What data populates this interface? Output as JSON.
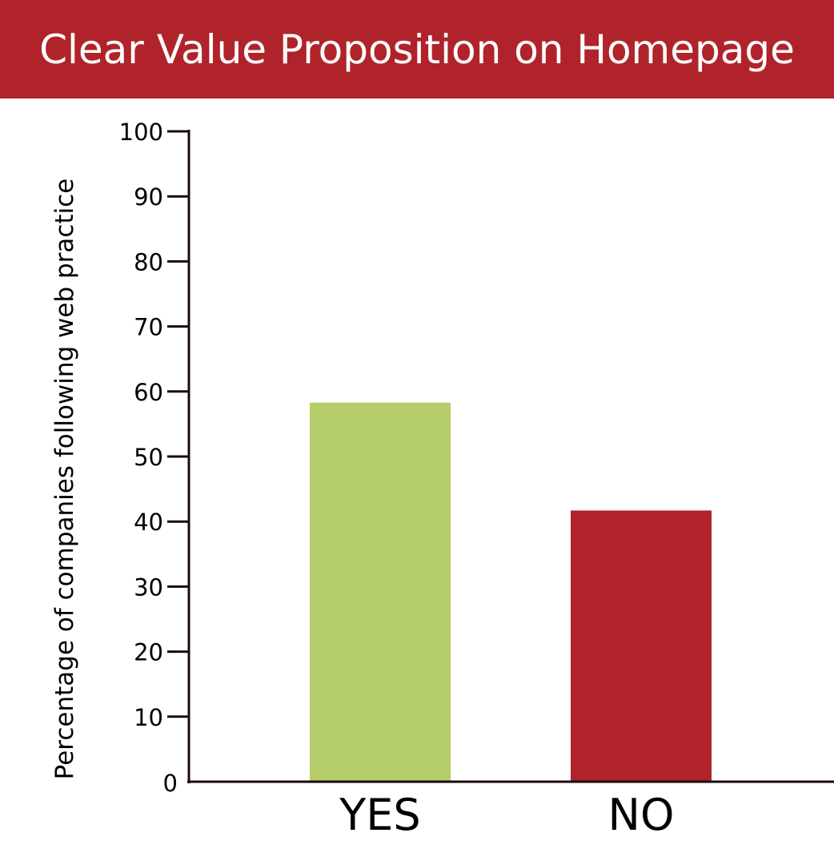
{
  "colors": {
    "title_bg": "#b0232a",
    "title_text": "#ffffff",
    "axis": "#1a0a0c",
    "bars": [
      "#b6ce6a",
      "#b0232a"
    ]
  },
  "chart_data": {
    "type": "bar",
    "title": "Clear Value Proposition on Homepage",
    "xlabel": "",
    "ylabel": "Percentage of companies following web practice",
    "categories": [
      "YES",
      "NO"
    ],
    "values": [
      58.3,
      41.7
    ],
    "ylim": [
      0,
      100
    ],
    "yticks": [
      "0",
      "10",
      "20",
      "30",
      "40",
      "50",
      "60",
      "70",
      "80",
      "90",
      "100"
    ],
    "grid": false,
    "legend": "none"
  }
}
